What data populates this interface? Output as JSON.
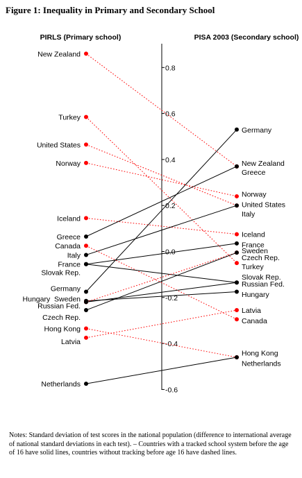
{
  "figure": {
    "title": "Figure 1: Inequality in Primary and Secondary School",
    "notes": "Notes: Standard deviation of test scores in the national population (difference to international average of national standard deviations in each test). – Countries with a tracked school system before the age of 16 have solid lines, countries without tracking before age 16 have dashed lines."
  },
  "chart_data": {
    "type": "slope",
    "left_axis_title": "PIRLS (Primary school)",
    "right_axis_title": "PISA 2003 (Secondary school)",
    "ylim": [
      -0.6,
      0.9
    ],
    "ticks": [
      0.8,
      0.6,
      0.4,
      0.2,
      0.0,
      -0.2,
      -0.4,
      -0.6
    ],
    "tick_labels": [
      "0.8",
      "0.6",
      "0.4",
      "0.2",
      "0.0",
      "-0.2",
      "-0.4",
      "-0.6"
    ],
    "colors": {
      "tracked": "#000000",
      "untracked": "#ff0000"
    },
    "countries": [
      {
        "name": "New Zealand",
        "pirls": 0.86,
        "pisa": 0.37,
        "tracked": false
      },
      {
        "name": "Turkey",
        "pirls": 0.585,
        "pisa": -0.05,
        "tracked": false
      },
      {
        "name": "United States",
        "pirls": 0.465,
        "pisa": 0.2,
        "tracked": false
      },
      {
        "name": "Norway",
        "pirls": 0.385,
        "pisa": 0.24,
        "tracked": false
      },
      {
        "name": "Iceland",
        "pirls": 0.145,
        "pisa": 0.075,
        "tracked": false
      },
      {
        "name": "Greece",
        "pirls": 0.065,
        "pisa": 0.37,
        "tracked": true
      },
      {
        "name": "Canada",
        "pirls": 0.025,
        "pisa": -0.295,
        "tracked": false
      },
      {
        "name": "Italy",
        "pirls": -0.015,
        "pisa": 0.2,
        "tracked": true
      },
      {
        "name": "France",
        "pirls": -0.055,
        "pisa": 0.035,
        "tracked": true
      },
      {
        "name": "Slovak Rep.",
        "pirls": -0.055,
        "pisa": -0.135,
        "tracked": true
      },
      {
        "name": "Germany",
        "pirls": -0.175,
        "pisa": 0.53,
        "tracked": true
      },
      {
        "name": "Hungary",
        "pirls": -0.215,
        "pisa": -0.175,
        "tracked": true
      },
      {
        "name": "Sweden",
        "pirls": -0.22,
        "pisa": -0.005,
        "tracked": false
      },
      {
        "name": "Russian Fed.",
        "pirls": -0.22,
        "pisa": -0.135,
        "tracked": true
      },
      {
        "name": "Czech Rep.",
        "pirls": -0.255,
        "pisa": -0.005,
        "tracked": true
      },
      {
        "name": "Hong Kong",
        "pirls": -0.335,
        "pisa": -0.46,
        "tracked": false
      },
      {
        "name": "Latvia",
        "pirls": -0.375,
        "pisa": -0.255,
        "tracked": false
      },
      {
        "name": "Netherlands",
        "pirls": -0.575,
        "pisa": -0.46,
        "tracked": true
      }
    ],
    "left_labels": [
      {
        "text": "New Zealand",
        "y": 0.86
      },
      {
        "text": "Turkey",
        "y": 0.585
      },
      {
        "text": "United States",
        "y": 0.465
      },
      {
        "text": "Norway",
        "y": 0.385
      },
      {
        "text": "Iceland",
        "y": 0.145
      },
      {
        "text": "Greece",
        "y": 0.065
      },
      {
        "text": "Canada",
        "y": 0.025
      },
      {
        "text": "Italy",
        "y": -0.015
      },
      {
        "text": "France",
        "y": -0.055
      },
      {
        "text": "Slovak Rep.",
        "y": -0.09
      },
      {
        "text": "Germany",
        "y": -0.16
      },
      {
        "text": "Hungary  Sweden",
        "y": -0.205
      },
      {
        "text": "Russian Fed.",
        "y": -0.235
      },
      {
        "text": "Czech Rep.",
        "y": -0.285
      },
      {
        "text": "Hong Kong",
        "y": -0.335
      },
      {
        "text": "Latvia",
        "y": -0.39
      },
      {
        "text": "Netherlands",
        "y": -0.575
      }
    ],
    "right_labels": [
      {
        "text": "Germany",
        "y": 0.53
      },
      {
        "text": "New Zealand",
        "y": 0.385
      },
      {
        "text": "Greece",
        "y": 0.345
      },
      {
        "text": "Norway",
        "y": 0.25
      },
      {
        "text": "United States",
        "y": 0.205
      },
      {
        "text": "Italy",
        "y": 0.165
      },
      {
        "text": "Iceland",
        "y": 0.075
      },
      {
        "text": "France",
        "y": 0.03
      },
      {
        "text": "Sweden",
        "y": 0.005
      },
      {
        "text": "Czech Rep.",
        "y": -0.025
      },
      {
        "text": "Turkey",
        "y": -0.065
      },
      {
        "text": "Slovak Rep.",
        "y": -0.11
      },
      {
        "text": "Russian Fed.",
        "y": -0.14
      },
      {
        "text": "Hungary",
        "y": -0.185
      },
      {
        "text": "Latvia",
        "y": -0.255
      },
      {
        "text": "Canada",
        "y": -0.3
      },
      {
        "text": "Hong Kong",
        "y": -0.44
      },
      {
        "text": "Netherlands",
        "y": -0.485
      }
    ]
  }
}
